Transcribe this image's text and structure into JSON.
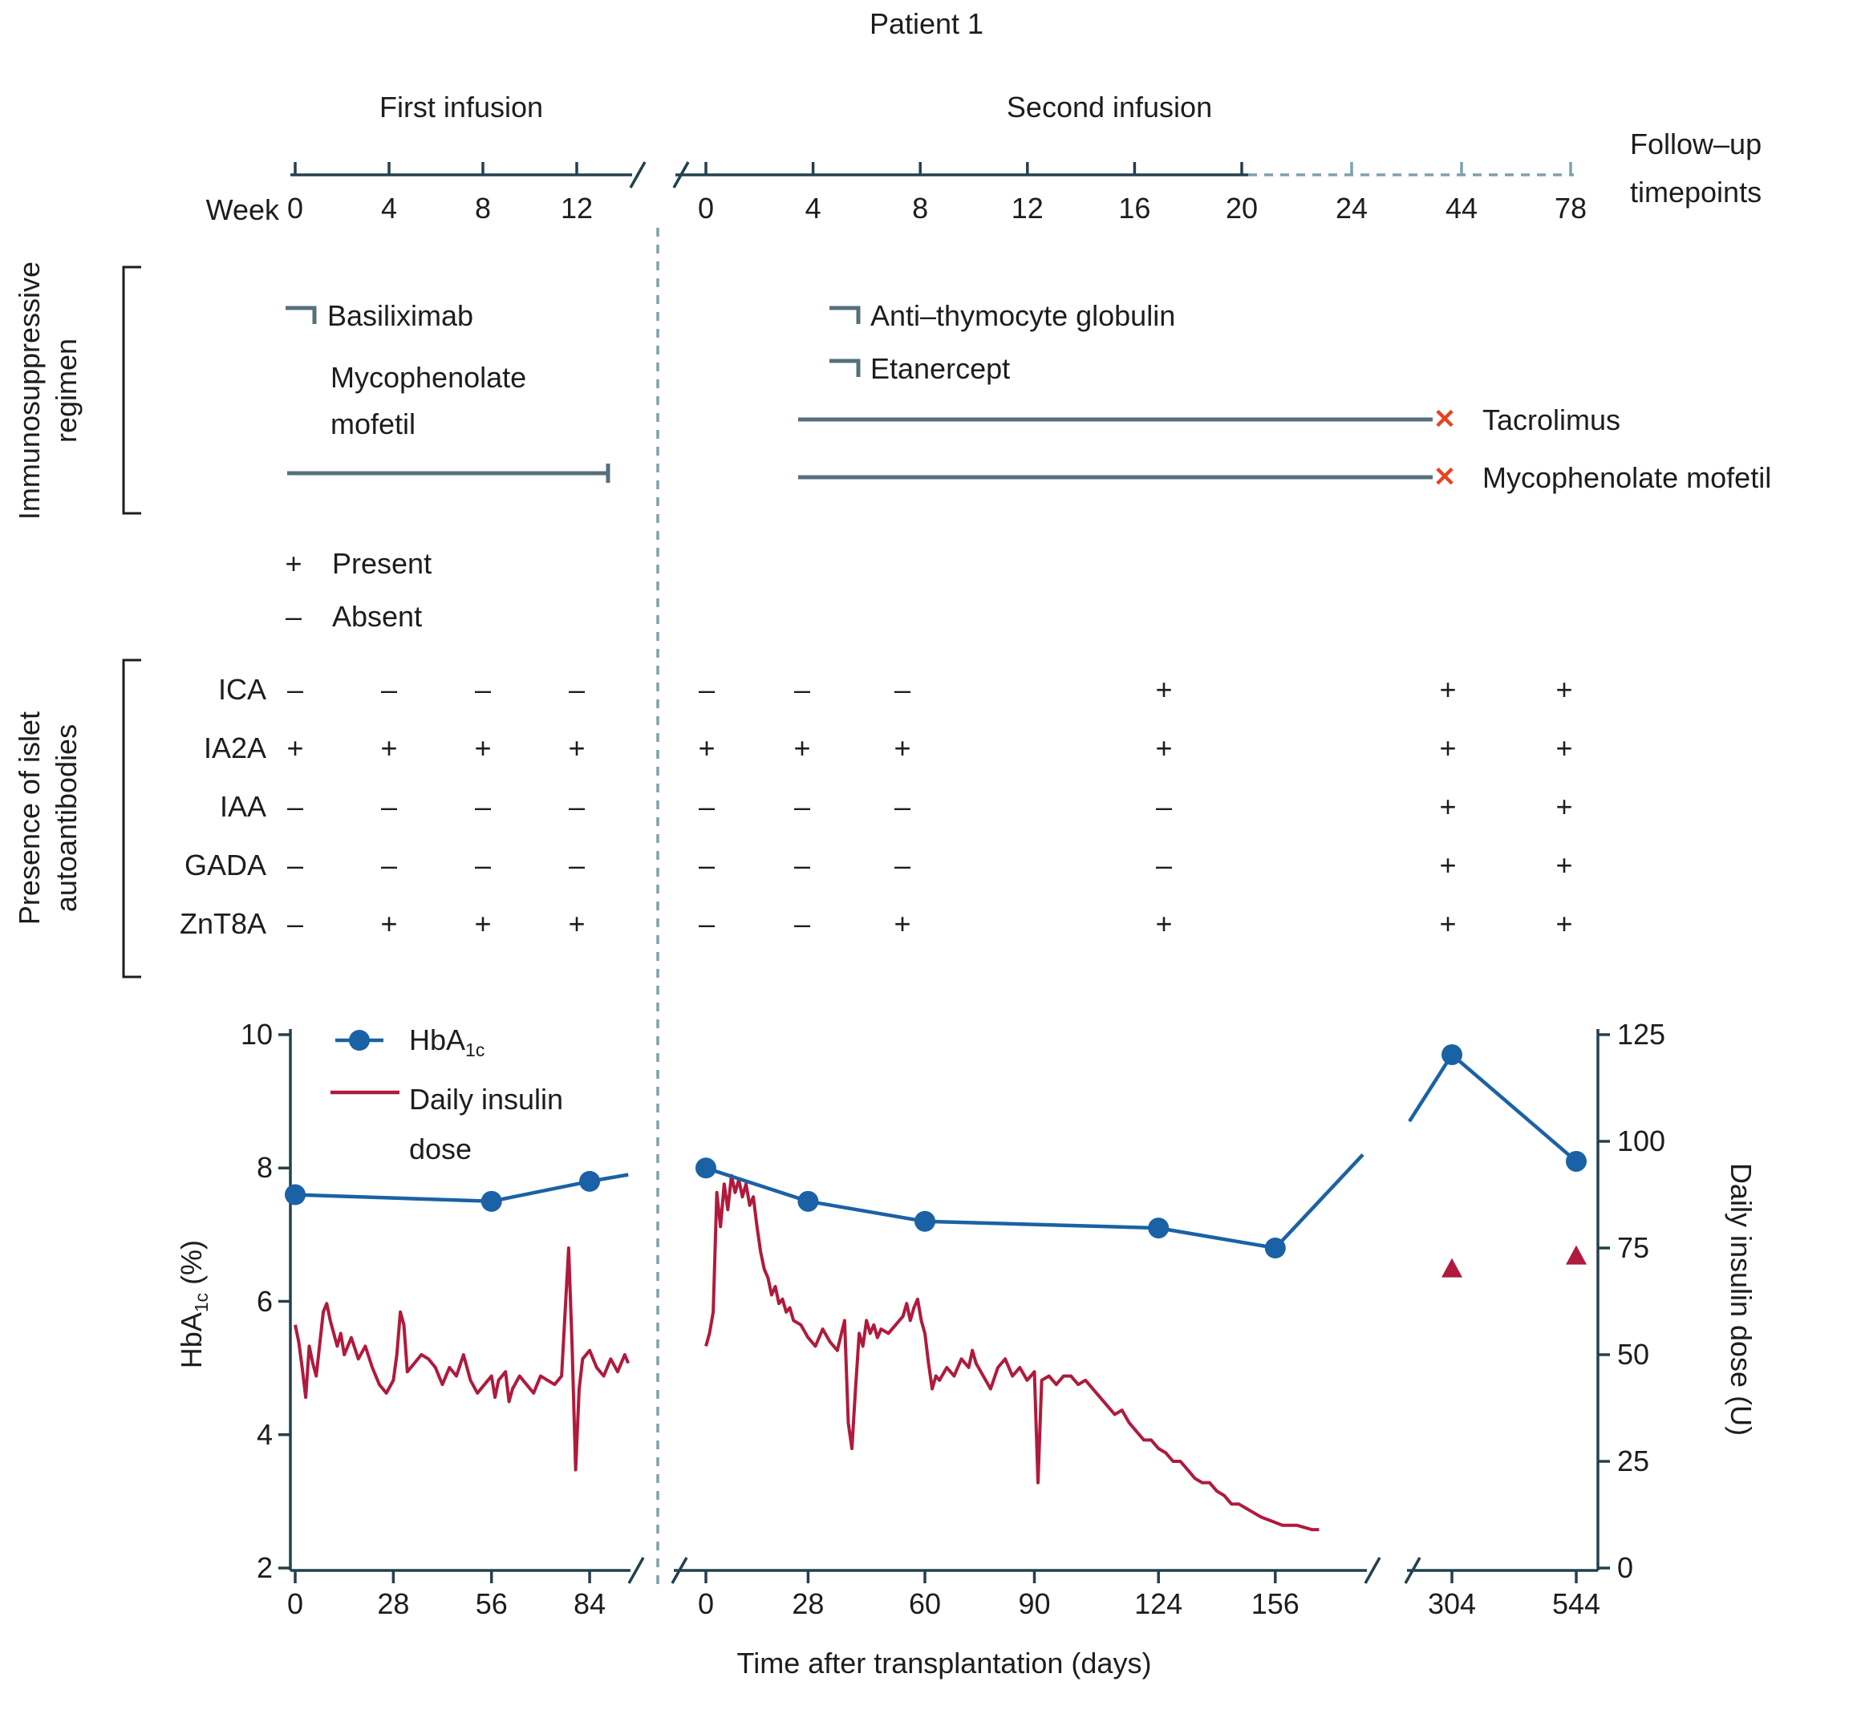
{
  "title": "Patient 1",
  "colors": {
    "text": "#1d1d1b",
    "axis": "#23404e",
    "drug_bar": "#54707c",
    "dashed": "#7fa0ac",
    "stop_x": "#e8431f"
  },
  "timeline": {
    "week_axis_label": "Week",
    "first_infusion": {
      "label": "First infusion",
      "ticks": [
        0,
        4,
        8,
        12
      ]
    },
    "second_infusion": {
      "label": "Second infusion",
      "ticks": [
        0,
        4,
        8,
        12,
        16,
        20
      ],
      "followup_ticks": [
        24,
        44,
        78
      ]
    },
    "followup_label_line1": "Follow–up",
    "followup_label_line2": "timepoints"
  },
  "immunosuppressive": {
    "section_label_line1": "Immunosuppressive",
    "section_label_line2": "regimen",
    "basiliximab": "Basiliximab",
    "mycophenolate_first_line1": "Mycophenolate",
    "mycophenolate_first_line2": "mofetil",
    "antithymocyte": "Anti–thymocyte globulin",
    "etanercept": "Etanercept",
    "tacrolimus": "Tacrolimus",
    "mycophenolate_second": "Mycophenolate mofetil",
    "stop_marker": "✕"
  },
  "presence_legend": {
    "present_symbol": "+",
    "present_label": "Present",
    "absent_symbol": "–",
    "absent_label": "Absent"
  },
  "autoantibodies": {
    "section_label_line1": "Presence of islet",
    "section_label_line2": "autoantibodies",
    "rows": [
      {
        "label": "ICA",
        "values": [
          "–",
          "–",
          "–",
          "–",
          "–",
          "–",
          "–",
          "+",
          "+",
          "+"
        ]
      },
      {
        "label": "IA2A",
        "values": [
          "+",
          "+",
          "+",
          "+",
          "+",
          "+",
          "+",
          "+",
          "+",
          "+"
        ]
      },
      {
        "label": "IAA",
        "values": [
          "–",
          "–",
          "–",
          "–",
          "–",
          "–",
          "–",
          "–",
          "+",
          "+"
        ]
      },
      {
        "label": "GADA",
        "values": [
          "–",
          "–",
          "–",
          "–",
          "–",
          "–",
          "–",
          "–",
          "+",
          "+"
        ]
      },
      {
        "label": "ZnT8A",
        "values": [
          "–",
          "+",
          "+",
          "+",
          "–",
          "–",
          "+",
          "+",
          "+",
          "+"
        ]
      }
    ]
  },
  "chart_data": {
    "type": "line",
    "xlabel": "Time after transplantation (days)",
    "ylabel_left_main": "HbA",
    "ylabel_left_sub": "1c",
    "ylabel_left_rest": " (%)",
    "ylabel_right": "Daily insulin dose (U)",
    "y_left_ticks": [
      10,
      8,
      6,
      4,
      2
    ],
    "y_right_ticks": [
      125,
      100,
      75,
      50,
      25,
      0
    ],
    "y_left_range": [
      2,
      10
    ],
    "y_right_range": [
      0,
      125
    ],
    "grid": false,
    "legend_position": "top-left",
    "legend": {
      "hba1c_main": "HbA",
      "hba1c_sub": "1c",
      "insulin_line1": "Daily insulin",
      "insulin_line2": "dose"
    },
    "x_segments": [
      {
        "name": "first-infusion-days",
        "ticks": [
          0,
          28,
          56,
          84
        ]
      },
      {
        "name": "second-infusion-days",
        "ticks": [
          0,
          28,
          60,
          90,
          124,
          156
        ]
      },
      {
        "name": "followup-days",
        "ticks": [
          304,
          544
        ]
      }
    ],
    "hba1c": {
      "color": "#1b61a5",
      "segment1_points": [
        [
          0,
          7.6
        ],
        [
          56,
          7.5
        ],
        [
          84,
          7.8
        ]
      ],
      "segment1_line_end": [
        95,
        7.9
      ],
      "segment2_points": [
        [
          0,
          8.0
        ],
        [
          28,
          7.5
        ],
        [
          60,
          7.2
        ],
        [
          124,
          7.1
        ],
        [
          156,
          6.8
        ]
      ],
      "segment2_line_end": [
        180,
        8.2
      ],
      "segment3_line_start": [
        222,
        8.7
      ],
      "segment3_points": [
        [
          304,
          9.7
        ],
        [
          544,
          8.1
        ]
      ]
    },
    "insulin": {
      "color": "#b01a3c",
      "segment1": [
        [
          0,
          57
        ],
        [
          1,
          53
        ],
        [
          2,
          47
        ],
        [
          3,
          40
        ],
        [
          4,
          52
        ],
        [
          5,
          48
        ],
        [
          6,
          45
        ],
        [
          8,
          60
        ],
        [
          9,
          62
        ],
        [
          10,
          58
        ],
        [
          12,
          52
        ],
        [
          13,
          55
        ],
        [
          14,
          50
        ],
        [
          16,
          54
        ],
        [
          18,
          49
        ],
        [
          20,
          52
        ],
        [
          22,
          47
        ],
        [
          24,
          43
        ],
        [
          26,
          41
        ],
        [
          28,
          44
        ],
        [
          29,
          50
        ],
        [
          30,
          60
        ],
        [
          31,
          57
        ],
        [
          32,
          46
        ],
        [
          34,
          48
        ],
        [
          36,
          50
        ],
        [
          38,
          49
        ],
        [
          40,
          47
        ],
        [
          42,
          43
        ],
        [
          44,
          47
        ],
        [
          46,
          45
        ],
        [
          48,
          50
        ],
        [
          50,
          44
        ],
        [
          52,
          41
        ],
        [
          54,
          43
        ],
        [
          56,
          45
        ],
        [
          57,
          40
        ],
        [
          58,
          44
        ],
        [
          60,
          46
        ],
        [
          61,
          39
        ],
        [
          62,
          42
        ],
        [
          64,
          45
        ],
        [
          66,
          43
        ],
        [
          68,
          41
        ],
        [
          70,
          45
        ],
        [
          72,
          44
        ],
        [
          74,
          43
        ],
        [
          76,
          45
        ],
        [
          78,
          75
        ],
        [
          79,
          52
        ],
        [
          80,
          23
        ],
        [
          81,
          42
        ],
        [
          82,
          49
        ],
        [
          84,
          51
        ],
        [
          86,
          47
        ],
        [
          88,
          45
        ],
        [
          90,
          49
        ],
        [
          92,
          46
        ],
        [
          94,
          50
        ],
        [
          95,
          48
        ]
      ],
      "segment2": [
        [
          0,
          52
        ],
        [
          1,
          55
        ],
        [
          2,
          60
        ],
        [
          3,
          88
        ],
        [
          4,
          80
        ],
        [
          5,
          90
        ],
        [
          6,
          84
        ],
        [
          7,
          92
        ],
        [
          8,
          88
        ],
        [
          9,
          91
        ],
        [
          10,
          87
        ],
        [
          11,
          90
        ],
        [
          12,
          85
        ],
        [
          13,
          87
        ],
        [
          14,
          80
        ],
        [
          15,
          74
        ],
        [
          16,
          70
        ],
        [
          17,
          68
        ],
        [
          18,
          64
        ],
        [
          19,
          66
        ],
        [
          20,
          62
        ],
        [
          21,
          63
        ],
        [
          22,
          60
        ],
        [
          23,
          61
        ],
        [
          24,
          58
        ],
        [
          26,
          57
        ],
        [
          28,
          54
        ],
        [
          30,
          52
        ],
        [
          32,
          56
        ],
        [
          34,
          53
        ],
        [
          36,
          51
        ],
        [
          38,
          58
        ],
        [
          39,
          34
        ],
        [
          40,
          28
        ],
        [
          41,
          42
        ],
        [
          42,
          55
        ],
        [
          43,
          52
        ],
        [
          44,
          58
        ],
        [
          45,
          55
        ],
        [
          46,
          57
        ],
        [
          47,
          54
        ],
        [
          48,
          56
        ],
        [
          50,
          55
        ],
        [
          52,
          57
        ],
        [
          54,
          59
        ],
        [
          55,
          62
        ],
        [
          56,
          58
        ],
        [
          57,
          61
        ],
        [
          58,
          63
        ],
        [
          59,
          58
        ],
        [
          60,
          55
        ],
        [
          61,
          48
        ],
        [
          62,
          42
        ],
        [
          63,
          45
        ],
        [
          64,
          44
        ],
        [
          66,
          47
        ],
        [
          68,
          45
        ],
        [
          70,
          49
        ],
        [
          72,
          47
        ],
        [
          73,
          51
        ],
        [
          74,
          48
        ],
        [
          76,
          45
        ],
        [
          78,
          42
        ],
        [
          80,
          47
        ],
        [
          82,
          49
        ],
        [
          84,
          45
        ],
        [
          86,
          47
        ],
        [
          88,
          44
        ],
        [
          90,
          46
        ],
        [
          91,
          20
        ],
        [
          92,
          44
        ],
        [
          94,
          45
        ],
        [
          96,
          43
        ],
        [
          98,
          45
        ],
        [
          100,
          45
        ],
        [
          102,
          43
        ],
        [
          104,
          44
        ],
        [
          106,
          42
        ],
        [
          108,
          40
        ],
        [
          110,
          38
        ],
        [
          112,
          36
        ],
        [
          114,
          37
        ],
        [
          116,
          34
        ],
        [
          118,
          32
        ],
        [
          120,
          30
        ],
        [
          122,
          30
        ],
        [
          124,
          28
        ],
        [
          126,
          27
        ],
        [
          128,
          25
        ],
        [
          130,
          25
        ],
        [
          132,
          23
        ],
        [
          134,
          21
        ],
        [
          136,
          20
        ],
        [
          138,
          20
        ],
        [
          140,
          18
        ],
        [
          142,
          17
        ],
        [
          144,
          15
        ],
        [
          146,
          15
        ],
        [
          148,
          14
        ],
        [
          150,
          13
        ],
        [
          152,
          12
        ],
        [
          155,
          11
        ],
        [
          158,
          10
        ],
        [
          162,
          10
        ],
        [
          166,
          9
        ],
        [
          168,
          9
        ]
      ],
      "followup_points": [
        [
          304,
          70
        ],
        [
          544,
          73
        ]
      ]
    }
  }
}
